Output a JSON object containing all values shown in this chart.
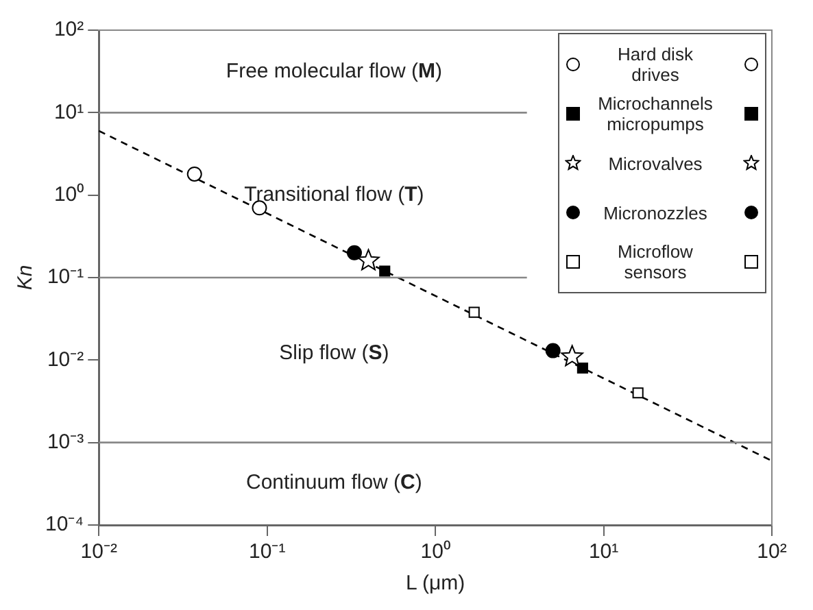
{
  "chart_data": {
    "type": "scatter",
    "xlabel": "L (μm)",
    "ylabel": "Kn",
    "log": "xy",
    "grid": false,
    "legend": "top right",
    "xlim": [
      0.01,
      100
    ],
    "ylim": [
      0.0001,
      100
    ],
    "xticks": [
      {
        "value": 0.01,
        "label": "10⁻²"
      },
      {
        "value": 0.1,
        "label": "10⁻¹"
      },
      {
        "value": 1,
        "label": "10⁰"
      },
      {
        "value": 10,
        "label": "10¹"
      },
      {
        "value": 100,
        "label": "10²"
      }
    ],
    "yticks": [
      {
        "value": 0.0001,
        "label": "10⁻⁴"
      },
      {
        "value": 0.001,
        "label": "10⁻³"
      },
      {
        "value": 0.01,
        "label": "10⁻²"
      },
      {
        "value": 0.1,
        "label": "10⁻¹"
      },
      {
        "value": 1,
        "label": "10⁰"
      },
      {
        "value": 10,
        "label": "10¹"
      },
      {
        "value": 100,
        "label": "10²"
      }
    ],
    "annotations": [
      "Free molecular flow (M)",
      "Transitional flow (T)",
      "Slip flow (S)",
      "Continuum flow (C)"
    ],
    "series": [
      {
        "type": "line",
        "x": [
          0.01,
          3.5
        ],
        "values": [
          10,
          10
        ],
        "color": "#888888",
        "marker": "none",
        "line_style": "solid"
      },
      {
        "type": "line",
        "x": [
          0.01,
          3.5
        ],
        "values": [
          0.1,
          0.1
        ],
        "color": "#888888",
        "marker": "none",
        "line_style": "solid"
      },
      {
        "type": "line",
        "x": [
          0.01,
          100
        ],
        "values": [
          0.001,
          0.001
        ],
        "color": "#888888",
        "marker": "none",
        "line_style": "solid"
      },
      {
        "type": "line",
        "x": [
          0.01,
          100
        ],
        "values": [
          6,
          0.0006
        ],
        "color": "#000000",
        "marker": "none",
        "line_style": "dashed"
      },
      {
        "name": "Hard disk drives",
        "x": [
          0.037,
          0.09
        ],
        "values": [
          1.8,
          0.7
        ],
        "color": "#ffffff",
        "marker": "circle"
      },
      {
        "name": "Microchannels micropumps",
        "x": [
          0.5,
          7.5
        ],
        "values": [
          0.12,
          0.008
        ],
        "color": "#000000",
        "marker": "square"
      },
      {
        "name": "Microvalves",
        "x": [
          0.4,
          6.5
        ],
        "values": [
          0.16,
          0.011
        ],
        "color": "#ffffff",
        "marker": "star"
      },
      {
        "name": "Micronozzles",
        "x": [
          0.33,
          5
        ],
        "values": [
          0.2,
          0.013
        ],
        "color": "#000000",
        "marker": "circle"
      },
      {
        "name": "Microflow sensors",
        "x": [
          1.7,
          16
        ],
        "values": [
          0.038,
          0.004
        ],
        "color": "#ffffff",
        "marker": "square"
      }
    ]
  }
}
